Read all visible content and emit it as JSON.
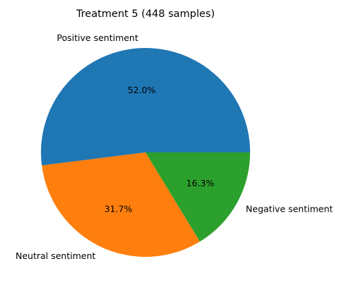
{
  "chart_data": {
    "type": "pie",
    "title": "Treatment 5 (448 samples)",
    "start_angle_deg": 0,
    "direction": "counterclockwise",
    "slices": [
      {
        "label": "Positive sentiment",
        "value": 52.0,
        "pct_label": "52.0%",
        "color": "#1f77b4"
      },
      {
        "label": "Neutral sentiment",
        "value": 31.7,
        "pct_label": "31.7%",
        "color": "#ff7f0e"
      },
      {
        "label": "Negative sentiment",
        "value": 16.3,
        "pct_label": "16.3%",
        "color": "#2ca02c"
      }
    ]
  }
}
